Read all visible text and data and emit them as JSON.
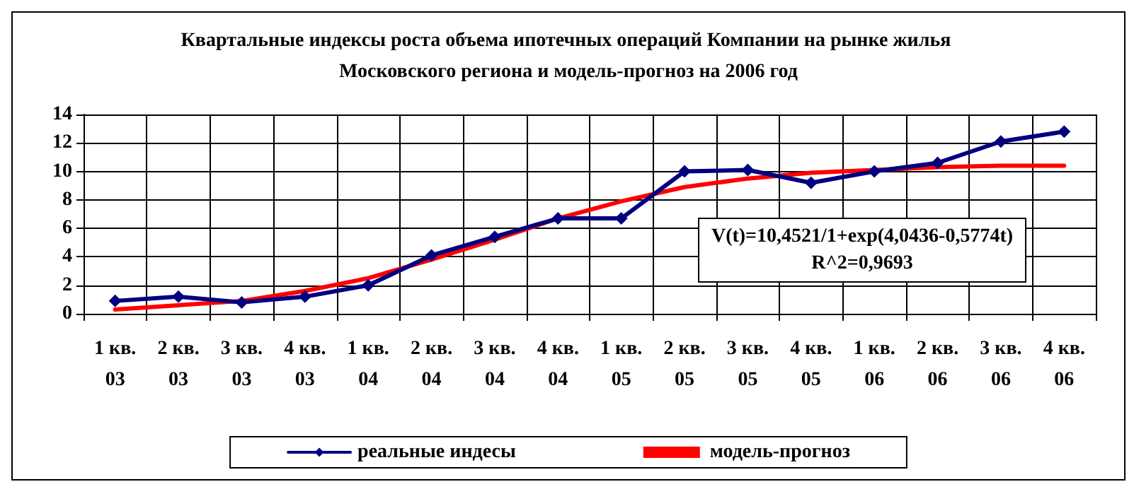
{
  "chart_data": {
    "type": "line",
    "title": "Квартальные индексы роста объема ипотечных операций Компании на рынке жилья Московского региона и модель-прогноз на 2006 год",
    "categories": [
      "1 кв. 03",
      "2 кв. 03",
      "3 кв. 03",
      "4 кв. 03",
      "1 кв. 04",
      "2 кв. 04",
      "3 кв. 04",
      "4 кв. 04",
      "1 кв. 05",
      "2 кв. 05",
      "3 кв. 05",
      "4 кв. 05",
      "1 кв. 06",
      "2 кв. 06",
      "3 кв. 06",
      "4 кв. 06"
    ],
    "series": [
      {
        "name": "реальные индесы",
        "color": "#000080",
        "marker": "diamond",
        "values": [
          0.9,
          1.2,
          0.8,
          1.2,
          2.0,
          4.1,
          5.4,
          6.7,
          6.7,
          10.0,
          10.1,
          9.2,
          10.0,
          10.6,
          12.1,
          12.8
        ]
      },
      {
        "name": "модель-прогноз",
        "color": "#ff0000",
        "marker": "none",
        "values": [
          0.3,
          0.6,
          0.9,
          1.6,
          2.5,
          3.8,
          5.2,
          6.7,
          7.9,
          8.9,
          9.5,
          9.9,
          10.1,
          10.3,
          10.4,
          10.4
        ]
      }
    ],
    "ylim": [
      0,
      14
    ],
    "yticks": [
      0,
      2,
      4,
      6,
      8,
      10,
      12,
      14
    ],
    "grid": true,
    "legend": "bottom",
    "line_style": "solid",
    "annotations": [
      "V(t)=10,4521/1+exp(4,0436-0,5774t)",
      "R^2=0,9693"
    ]
  }
}
